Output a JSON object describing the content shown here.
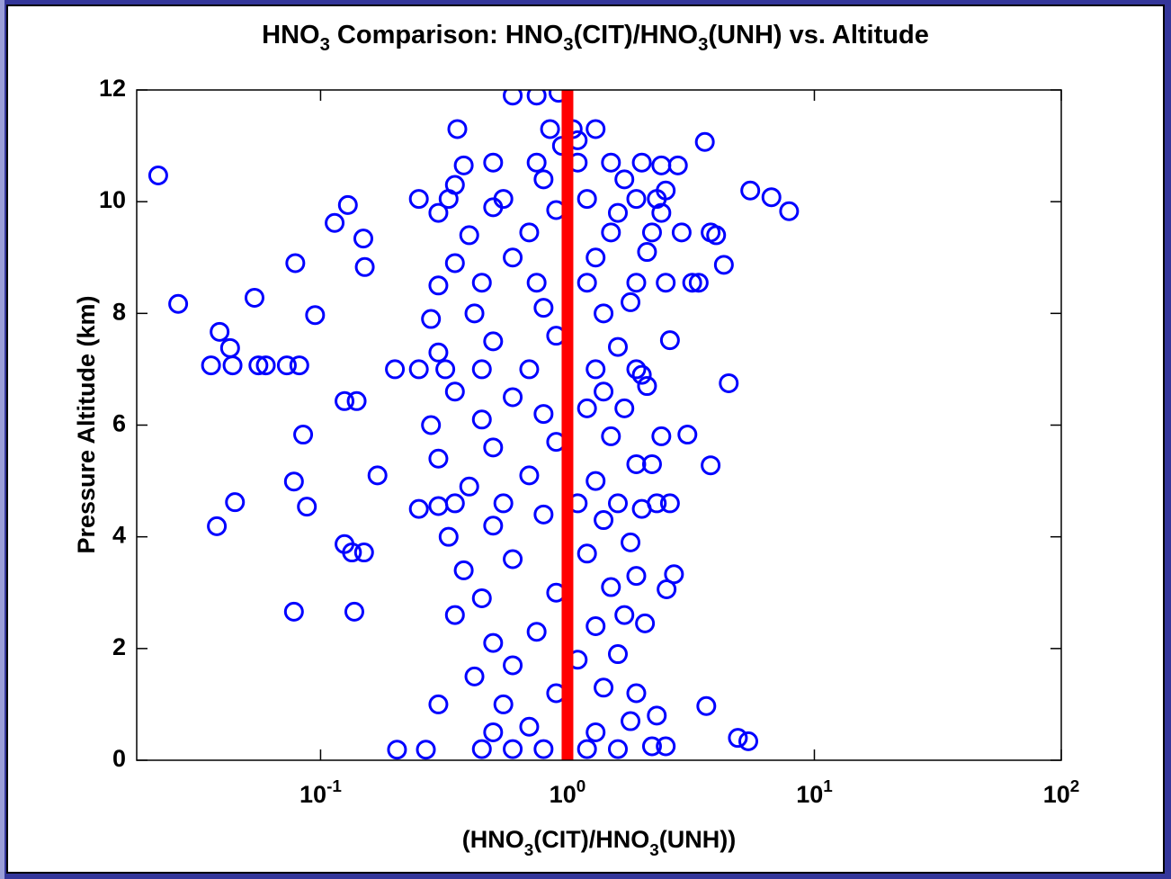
{
  "chart_data": {
    "type": "scatter",
    "title": "HNO3 Comparison: HNO3(CIT)/HNO3(UNH) vs. Altitude",
    "x_label": "(HNO3(CIT)/HNO3(UNH))",
    "y_label": "Pressure Altitude (km)",
    "xscale": "log",
    "xlim": [
      0.018,
      100
    ],
    "ylim": [
      0,
      12
    ],
    "xticks": [
      {
        "value": 0.1,
        "label": "10-1"
      },
      {
        "value": 1,
        "label": "100"
      },
      {
        "value": 10,
        "label": "101"
      },
      {
        "value": 100,
        "label": "102"
      }
    ],
    "yticks": [
      0,
      2,
      4,
      6,
      8,
      10,
      12
    ],
    "grid": false,
    "series": [
      {
        "type": "scatter",
        "color": "#0000ff",
        "x": [
          0.022,
          0.0265,
          0.039,
          0.043,
          0.036,
          0.044,
          0.054,
          0.056,
          0.06,
          0.073,
          0.079,
          0.082,
          0.078,
          0.085,
          0.088,
          0.045,
          0.038,
          0.078,
          0.137,
          0.095,
          0.114,
          0.129,
          0.149,
          0.151,
          0.14,
          0.125,
          0.125,
          0.134,
          0.15,
          0.17,
          0.204,
          0.267,
          0.3,
          0.358,
          0.6,
          0.75,
          0.92,
          3.6,
          5.5,
          6.7,
          7.9,
          4.3,
          4.5,
          3.8,
          3.06,
          2.6,
          4.9,
          5.4,
          3.65,
          2.7,
          2.52,
          2.06,
          0.45,
          0.6,
          0.8,
          1.2,
          1.6,
          2.2,
          2.5,
          0.5,
          0.7,
          1.3,
          1.8,
          2.3,
          0.55,
          0.9,
          1.4,
          1.9,
          0.42,
          0.6,
          1.1,
          1.6,
          0.5,
          0.75,
          1.3,
          1.7,
          0.35,
          0.45,
          0.9,
          1.5,
          1.9,
          0.38,
          0.6,
          1.2,
          1.8,
          0.33,
          0.5,
          0.8,
          1.4,
          2.0,
          0.25,
          0.3,
          0.35,
          0.55,
          1.1,
          1.6,
          2.3,
          2.6,
          0.4,
          0.7,
          1.3,
          1.9,
          2.2,
          0.3,
          0.5,
          0.9,
          1.5,
          2.4,
          0.28,
          0.45,
          0.8,
          1.2,
          1.7,
          0.35,
          0.6,
          1.4,
          2.1,
          0.2,
          0.25,
          0.32,
          0.45,
          0.7,
          1.3,
          1.9,
          2.0,
          0.3,
          0.5,
          0.9,
          1.6,
          0.28,
          0.42,
          0.8,
          1.4,
          1.8,
          0.3,
          0.45,
          0.75,
          1.2,
          1.9,
          2.5,
          3.2,
          3.4,
          0.35,
          0.6,
          1.3,
          2.1,
          0.4,
          0.7,
          1.5,
          2.2,
          2.9,
          3.8,
          4.0,
          0.3,
          0.5,
          0.9,
          1.6,
          2.4,
          0.25,
          0.33,
          0.55,
          1.2,
          1.9,
          2.3,
          0.35,
          0.8,
          1.7,
          2.5,
          0.38,
          0.5,
          0.75,
          1.1,
          1.5,
          2.0,
          2.4,
          2.8,
          0.85,
          1.05,
          1.3,
          0.95,
          1.1
        ],
        "y": [
          10.47,
          8.17,
          7.67,
          7.38,
          7.07,
          7.07,
          8.28,
          7.07,
          7.07,
          7.07,
          8.9,
          7.07,
          4.99,
          5.83,
          4.54,
          4.62,
          4.19,
          2.66,
          2.66,
          7.97,
          9.62,
          9.94,
          9.34,
          8.83,
          6.43,
          6.43,
          3.87,
          3.72,
          3.72,
          5.1,
          0.19,
          0.19,
          1.0,
          11.3,
          11.9,
          11.9,
          11.95,
          11.07,
          10.2,
          10.08,
          9.83,
          8.87,
          6.75,
          5.28,
          5.83,
          7.52,
          0.4,
          0.34,
          0.97,
          3.33,
          3.06,
          2.45,
          0.2,
          0.2,
          0.2,
          0.2,
          0.2,
          0.25,
          0.25,
          0.5,
          0.6,
          0.5,
          0.7,
          0.8,
          1.0,
          1.2,
          1.3,
          1.2,
          1.5,
          1.7,
          1.8,
          1.9,
          2.1,
          2.3,
          2.4,
          2.6,
          2.6,
          2.9,
          3.0,
          3.1,
          3.3,
          3.4,
          3.6,
          3.7,
          3.9,
          4.0,
          4.2,
          4.4,
          4.3,
          4.5,
          4.5,
          4.55,
          4.6,
          4.6,
          4.6,
          4.6,
          4.6,
          4.6,
          4.9,
          5.1,
          5.0,
          5.3,
          5.3,
          5.4,
          5.6,
          5.7,
          5.8,
          5.8,
          6.0,
          6.1,
          6.2,
          6.3,
          6.3,
          6.6,
          6.5,
          6.6,
          6.7,
          7.0,
          7.0,
          7.0,
          7.0,
          7.0,
          7.0,
          7.0,
          6.9,
          7.3,
          7.5,
          7.6,
          7.4,
          7.9,
          8.0,
          8.1,
          8.0,
          8.2,
          8.5,
          8.55,
          8.55,
          8.55,
          8.55,
          8.55,
          8.55,
          8.55,
          8.9,
          9.0,
          9.0,
          9.1,
          9.4,
          9.45,
          9.45,
          9.45,
          9.45,
          9.45,
          9.4,
          9.8,
          9.9,
          9.85,
          9.8,
          9.8,
          10.05,
          10.05,
          10.05,
          10.05,
          10.05,
          10.05,
          10.3,
          10.4,
          10.4,
          10.2,
          10.65,
          10.7,
          10.7,
          10.7,
          10.7,
          10.7,
          10.65,
          10.65,
          11.3,
          11.3,
          11.3,
          11.0,
          11.1
        ]
      },
      {
        "type": "line",
        "color": "#ff0000",
        "x": [
          1,
          1
        ],
        "y": [
          0,
          12
        ]
      }
    ]
  }
}
